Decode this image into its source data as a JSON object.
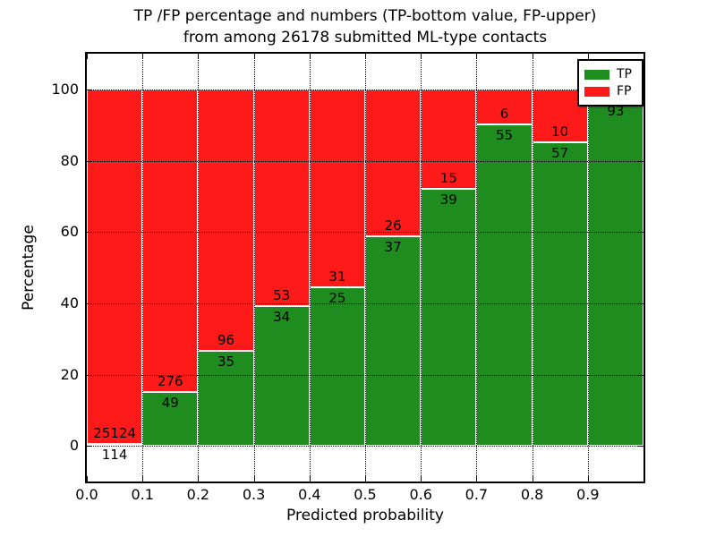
{
  "title": {
    "line1": "TP /FP percentage and numbers (TP-bottom value, FP-upper)",
    "line2": "from among 26178 submitted ML-type contacts"
  },
  "axes": {
    "xlabel": "Predicted probability",
    "ylabel": "Percentage",
    "xticks": [
      "0.0",
      "0.1",
      "0.2",
      "0.3",
      "0.4",
      "0.5",
      "0.6",
      "0.7",
      "0.8",
      "0.9"
    ],
    "yticks": [
      "0",
      "20",
      "40",
      "60",
      "80",
      "100"
    ],
    "ytick_values": [
      0,
      20,
      40,
      60,
      80,
      100
    ],
    "xlim": [
      0.0,
      1.0
    ],
    "ylim": [
      -10,
      110
    ],
    "grid": "dotted, drawn above bars"
  },
  "legend": [
    {
      "label": "TP",
      "color": "#1e8c1e"
    },
    {
      "label": "FP",
      "color": "#ff1a1a"
    }
  ],
  "colors": {
    "tp": "#1e8c1e",
    "fp": "#ff1a1a",
    "frame": "#000000",
    "background": "#ffffff",
    "bar_edge": "#ffffff"
  },
  "chart_data": {
    "type": "bar",
    "stacked": true,
    "title": "TP /FP percentage and numbers (TP-bottom value, FP-upper)\nfrom among 26178 submitted ML-type contacts",
    "xlabel": "Predicted probability",
    "ylabel": "Percentage",
    "xlim": [
      0.0,
      1.0
    ],
    "ylim": [
      -10,
      110
    ],
    "legend_position": "upper right",
    "total_submitted_contacts": 26178,
    "bin_width": 0.1,
    "note": "Each bar totals 100%. Green TP segment height = tp_pct; red FP fills remainder. Labels show raw counts: TP below boundary, FP above. FP count label of last bin is hidden behind the legend.",
    "bins": [
      {
        "x_start": 0.0,
        "x_end": 0.1,
        "tp_count": 114,
        "fp_count": 25124,
        "tp_pct": 0.5,
        "fp_pct": 99.5
      },
      {
        "x_start": 0.1,
        "x_end": 0.2,
        "tp_count": 49,
        "fp_count": 276,
        "tp_pct": 15.1,
        "fp_pct": 84.9
      },
      {
        "x_start": 0.2,
        "x_end": 0.3,
        "tp_count": 35,
        "fp_count": 96,
        "tp_pct": 26.7,
        "fp_pct": 73.3
      },
      {
        "x_start": 0.3,
        "x_end": 0.4,
        "tp_count": 34,
        "fp_count": 53,
        "tp_pct": 39.1,
        "fp_pct": 60.9
      },
      {
        "x_start": 0.4,
        "x_end": 0.5,
        "tp_count": 25,
        "fp_count": 31,
        "tp_pct": 44.6,
        "fp_pct": 55.4
      },
      {
        "x_start": 0.5,
        "x_end": 0.6,
        "tp_count": 37,
        "fp_count": 26,
        "tp_pct": 58.7,
        "fp_pct": 41.3
      },
      {
        "x_start": 0.6,
        "x_end": 0.7,
        "tp_count": 39,
        "fp_count": 15,
        "tp_pct": 72.2,
        "fp_pct": 27.8
      },
      {
        "x_start": 0.7,
        "x_end": 0.8,
        "tp_count": 55,
        "fp_count": 6,
        "tp_pct": 90.2,
        "fp_pct": 9.8
      },
      {
        "x_start": 0.8,
        "x_end": 0.9,
        "tp_count": 57,
        "fp_count": 10,
        "tp_pct": 85.1,
        "fp_pct": 14.9
      },
      {
        "x_start": 0.9,
        "x_end": 1.0,
        "tp_count": 93,
        "fp_count": null,
        "tp_pct": 96.9,
        "fp_pct": 3.1
      }
    ]
  }
}
